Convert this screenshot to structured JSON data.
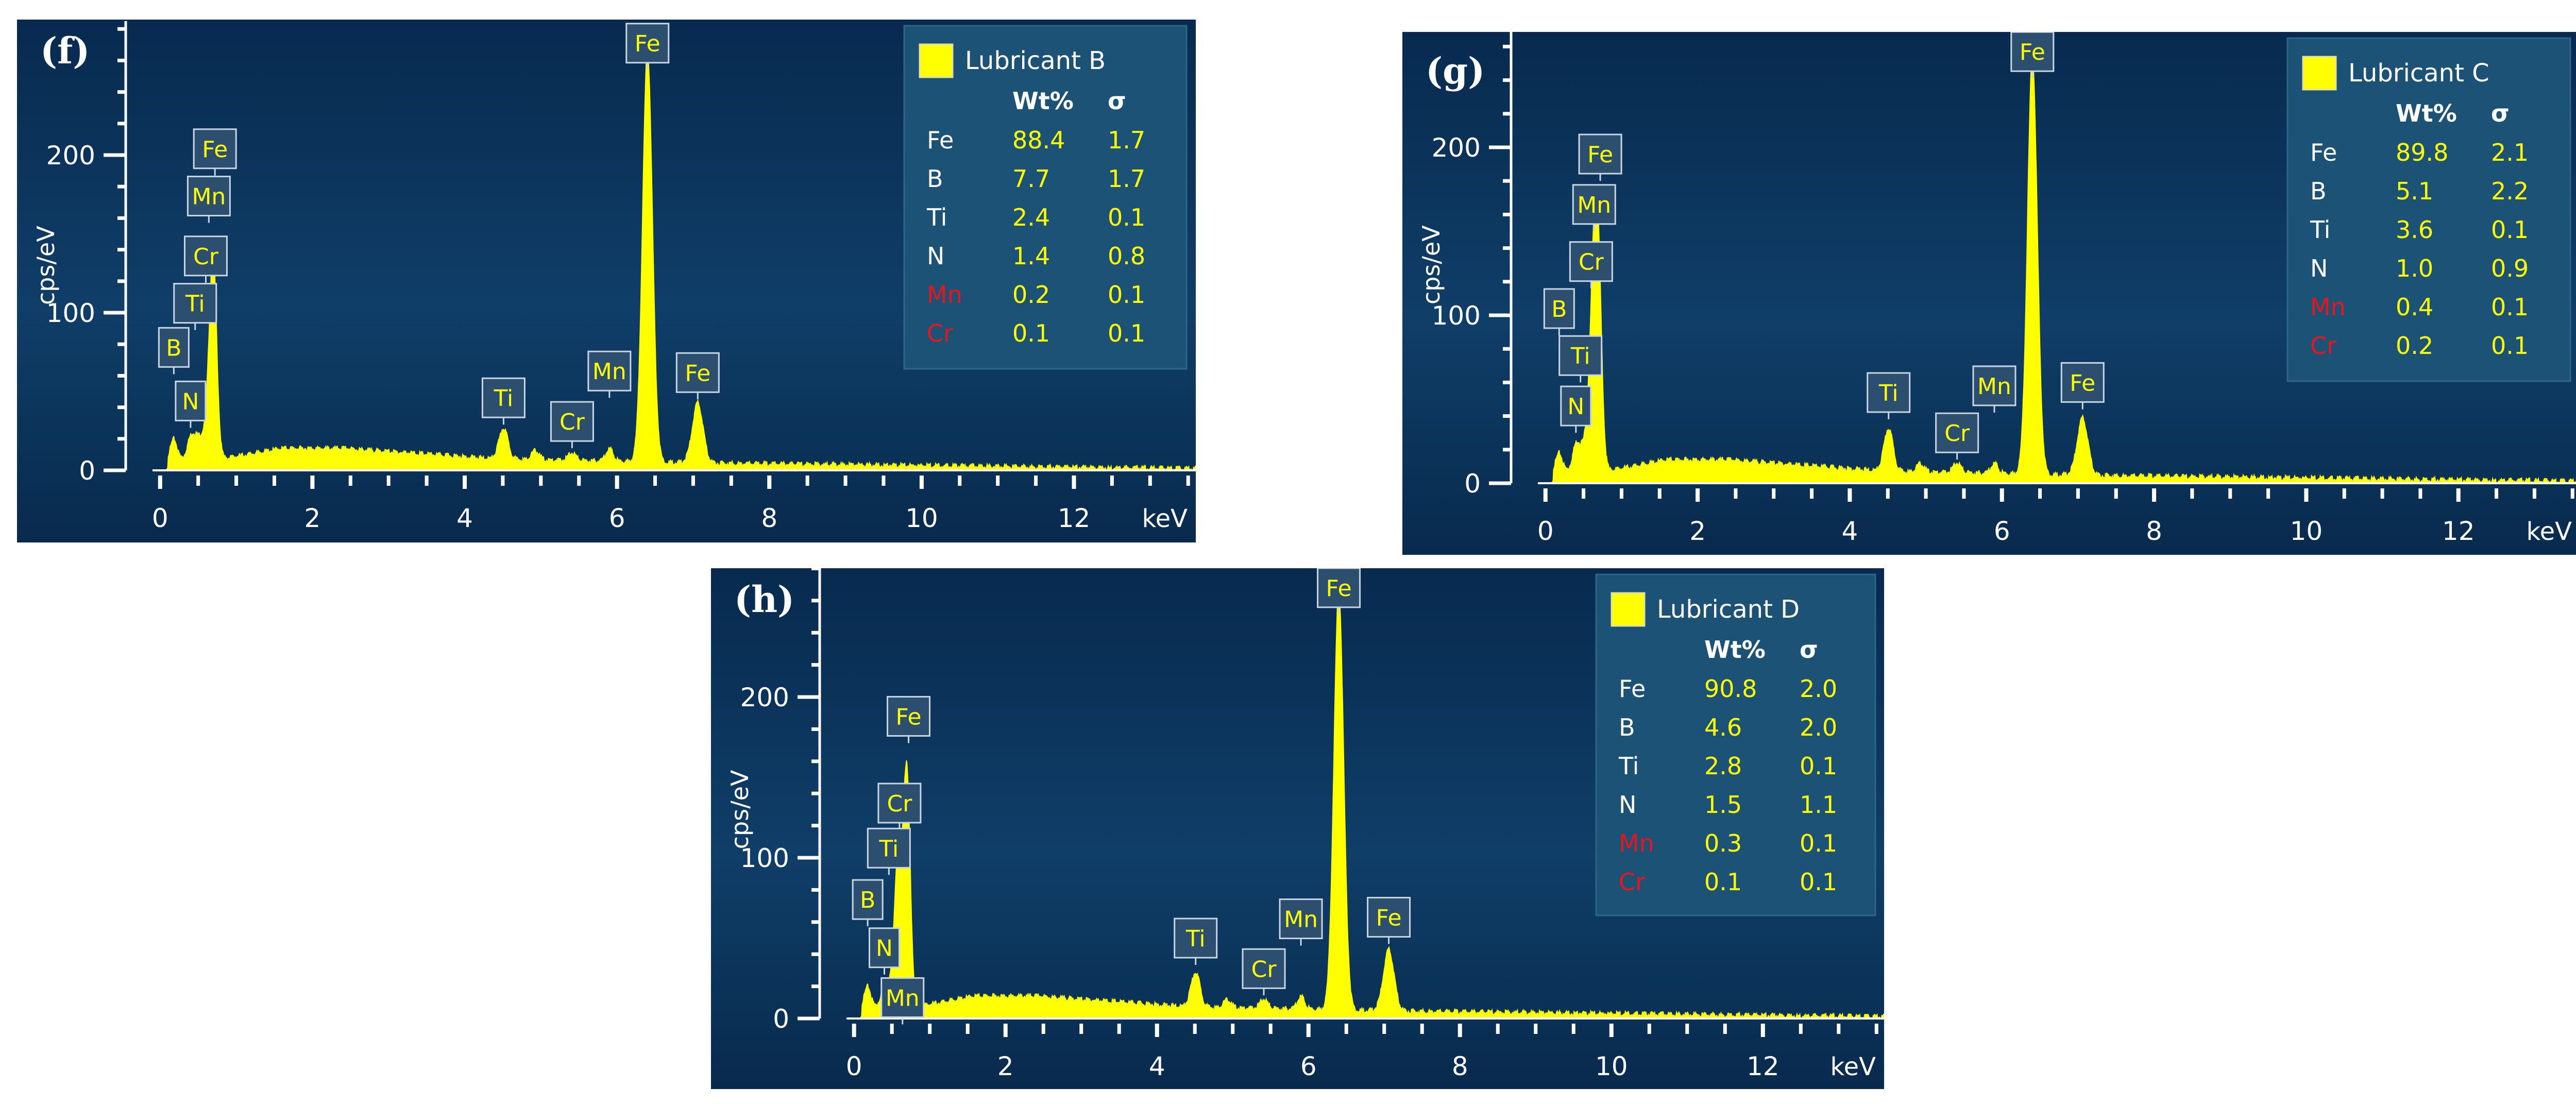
{
  "chart_data": [
    {
      "type": "area",
      "panel_label": "(f)",
      "ylabel": "cps/eV",
      "xlabel": "keV",
      "xlim": [
        -0.1,
        13.6
      ],
      "ylim": [
        0,
        285
      ],
      "x_ticks": [
        0,
        2,
        4,
        6,
        8,
        10,
        12
      ],
      "y_ticks": [
        0,
        100,
        200
      ],
      "series_color": "#ffff00",
      "legend": {
        "swatch_label": "Lubricant B",
        "col_wt": "Wt%",
        "col_sigma": "σ"
      },
      "composition": [
        {
          "element": "Fe",
          "wt": "88.4",
          "sigma": "1.7",
          "highlight": false
        },
        {
          "element": "B",
          "wt": "7.7",
          "sigma": "1.7",
          "highlight": false
        },
        {
          "element": "Ti",
          "wt": "2.4",
          "sigma": "0.1",
          "highlight": false
        },
        {
          "element": "N",
          "wt": "1.4",
          "sigma": "0.8",
          "highlight": false
        },
        {
          "element": "Mn",
          "wt": "0.2",
          "sigma": "0.1",
          "highlight": true
        },
        {
          "element": "Cr",
          "wt": "0.1",
          "sigma": "0.1",
          "highlight": true
        }
      ],
      "peaks": [
        {
          "x": 0.18,
          "y": 12,
          "w": 0.04
        },
        {
          "x": 0.39,
          "y": 10,
          "w": 0.04
        },
        {
          "x": 0.45,
          "y": 10,
          "w": 0.04
        },
        {
          "x": 0.51,
          "y": 8,
          "w": 0.04
        },
        {
          "x": 0.57,
          "y": 10,
          "w": 0.04
        },
        {
          "x": 0.64,
          "y": 26,
          "w": 0.04
        },
        {
          "x": 0.7,
          "y": 122,
          "w": 0.045
        },
        {
          "x": 4.51,
          "y": 20,
          "w": 0.06
        },
        {
          "x": 4.93,
          "y": 6,
          "w": 0.05
        },
        {
          "x": 5.41,
          "y": 5,
          "w": 0.05
        },
        {
          "x": 5.9,
          "y": 8,
          "w": 0.05
        },
        {
          "x": 6.4,
          "y": 262,
          "w": 0.065
        },
        {
          "x": 7.06,
          "y": 38,
          "w": 0.07
        }
      ],
      "peak_labels": [
        {
          "text": "Fe",
          "x": 0.72,
          "y": 204
        },
        {
          "text": "Mn",
          "x": 0.64,
          "y": 174
        },
        {
          "text": "Cr",
          "x": 0.6,
          "y": 136
        },
        {
          "text": "Ti",
          "x": 0.46,
          "y": 106
        },
        {
          "text": "B",
          "x": 0.18,
          "y": 78
        },
        {
          "text": "N",
          "x": 0.4,
          "y": 44
        },
        {
          "text": "Ti",
          "x": 4.51,
          "y": 46
        },
        {
          "text": "Cr",
          "x": 5.41,
          "y": 31
        },
        {
          "text": "Mn",
          "x": 5.9,
          "y": 63
        },
        {
          "text": "Fe",
          "x": 6.4,
          "y": 271
        },
        {
          "text": "Fe",
          "x": 7.06,
          "y": 62
        }
      ]
    },
    {
      "type": "area",
      "panel_label": "(g)",
      "ylabel": "cps/eV",
      "xlabel": "keV",
      "xlim": [
        -0.1,
        13.6
      ],
      "ylim": [
        0,
        285
      ],
      "x_ticks": [
        0,
        2,
        4,
        6,
        8,
        10,
        12
      ],
      "y_ticks": [
        0,
        100,
        200
      ],
      "series_color": "#ffff00",
      "legend": {
        "swatch_label": "Lubricant C",
        "col_wt": "Wt%",
        "col_sigma": "σ"
      },
      "composition": [
        {
          "element": "Fe",
          "wt": "89.8",
          "sigma": "2.1",
          "highlight": false
        },
        {
          "element": "B",
          "wt": "5.1",
          "sigma": "2.2",
          "highlight": false
        },
        {
          "element": "Ti",
          "wt": "3.6",
          "sigma": "0.1",
          "highlight": false
        },
        {
          "element": "N",
          "wt": "1.0",
          "sigma": "0.9",
          "highlight": false
        },
        {
          "element": "Mn",
          "wt": "0.4",
          "sigma": "0.1",
          "highlight": true
        },
        {
          "element": "Cr",
          "wt": "0.2",
          "sigma": "0.1",
          "highlight": true
        }
      ],
      "peaks": [
        {
          "x": 0.18,
          "y": 10,
          "w": 0.04
        },
        {
          "x": 0.39,
          "y": 12,
          "w": 0.04
        },
        {
          "x": 0.45,
          "y": 10,
          "w": 0.04
        },
        {
          "x": 0.51,
          "y": 8,
          "w": 0.04
        },
        {
          "x": 0.57,
          "y": 26,
          "w": 0.04
        },
        {
          "x": 0.64,
          "y": 110,
          "w": 0.045
        },
        {
          "x": 0.7,
          "y": 100,
          "w": 0.045
        },
        {
          "x": 4.51,
          "y": 26,
          "w": 0.06
        },
        {
          "x": 4.93,
          "y": 5,
          "w": 0.05
        },
        {
          "x": 5.41,
          "y": 6,
          "w": 0.05
        },
        {
          "x": 5.9,
          "y": 6,
          "w": 0.05
        },
        {
          "x": 6.4,
          "y": 250,
          "w": 0.065
        },
        {
          "x": 7.06,
          "y": 34,
          "w": 0.07
        }
      ],
      "peak_labels": [
        {
          "text": "Fe",
          "x": 0.72,
          "y": 196
        },
        {
          "text": "Mn",
          "x": 0.64,
          "y": 166
        },
        {
          "text": "Cr",
          "x": 0.6,
          "y": 132
        },
        {
          "text": "B",
          "x": 0.18,
          "y": 104
        },
        {
          "text": "Ti",
          "x": 0.46,
          "y": 76
        },
        {
          "text": "N",
          "x": 0.4,
          "y": 46
        },
        {
          "text": "Ti",
          "x": 4.51,
          "y": 54
        },
        {
          "text": "Cr",
          "x": 5.41,
          "y": 30
        },
        {
          "text": "Mn",
          "x": 5.9,
          "y": 58
        },
        {
          "text": "Fe",
          "x": 6.4,
          "y": 257
        },
        {
          "text": "Fe",
          "x": 7.06,
          "y": 60
        }
      ]
    },
    {
      "type": "area",
      "panel_label": "(h)",
      "ylabel": "cps/eV",
      "xlabel": "keV",
      "xlim": [
        -0.1,
        13.6
      ],
      "ylim": [
        0,
        285
      ],
      "x_ticks": [
        0,
        2,
        4,
        6,
        8,
        10,
        12
      ],
      "y_ticks": [
        0,
        100,
        200
      ],
      "series_color": "#ffff00",
      "legend": {
        "swatch_label": "Lubricant D",
        "col_wt": "Wt%",
        "col_sigma": "σ"
      },
      "composition": [
        {
          "element": "Fe",
          "wt": "90.8",
          "sigma": "2.0",
          "highlight": false
        },
        {
          "element": "B",
          "wt": "4.6",
          "sigma": "2.0",
          "highlight": false
        },
        {
          "element": "Ti",
          "wt": "2.8",
          "sigma": "0.1",
          "highlight": false
        },
        {
          "element": "N",
          "wt": "1.5",
          "sigma": "1.1",
          "highlight": false
        },
        {
          "element": "Mn",
          "wt": "0.3",
          "sigma": "0.1",
          "highlight": true
        },
        {
          "element": "Cr",
          "wt": "0.1",
          "sigma": "0.1",
          "highlight": true
        }
      ],
      "peaks": [
        {
          "x": 0.18,
          "y": 12,
          "w": 0.04
        },
        {
          "x": 0.39,
          "y": 10,
          "w": 0.04
        },
        {
          "x": 0.45,
          "y": 8,
          "w": 0.04
        },
        {
          "x": 0.51,
          "y": 10,
          "w": 0.04
        },
        {
          "x": 0.57,
          "y": 80,
          "w": 0.04
        },
        {
          "x": 0.64,
          "y": 40,
          "w": 0.04
        },
        {
          "x": 0.7,
          "y": 136,
          "w": 0.045
        },
        {
          "x": 4.51,
          "y": 22,
          "w": 0.06
        },
        {
          "x": 4.93,
          "y": 5,
          "w": 0.05
        },
        {
          "x": 5.41,
          "y": 6,
          "w": 0.05
        },
        {
          "x": 5.9,
          "y": 8,
          "w": 0.05
        },
        {
          "x": 6.4,
          "y": 262,
          "w": 0.065
        },
        {
          "x": 7.06,
          "y": 38,
          "w": 0.07
        }
      ],
      "peak_labels": [
        {
          "text": "Fe",
          "x": 0.72,
          "y": 188
        },
        {
          "text": "Cr",
          "x": 0.6,
          "y": 134
        },
        {
          "text": "Ti",
          "x": 0.46,
          "y": 106
        },
        {
          "text": "B",
          "x": 0.18,
          "y": 74
        },
        {
          "text": "N",
          "x": 0.4,
          "y": 44
        },
        {
          "text": "Mn",
          "x": 0.64,
          "y": 13
        },
        {
          "text": "Ti",
          "x": 4.51,
          "y": 50
        },
        {
          "text": "Cr",
          "x": 5.41,
          "y": 31
        },
        {
          "text": "Mn",
          "x": 5.9,
          "y": 62
        },
        {
          "text": "Fe",
          "x": 6.4,
          "y": 268
        },
        {
          "text": "Fe",
          "x": 7.06,
          "y": 63
        }
      ]
    }
  ]
}
